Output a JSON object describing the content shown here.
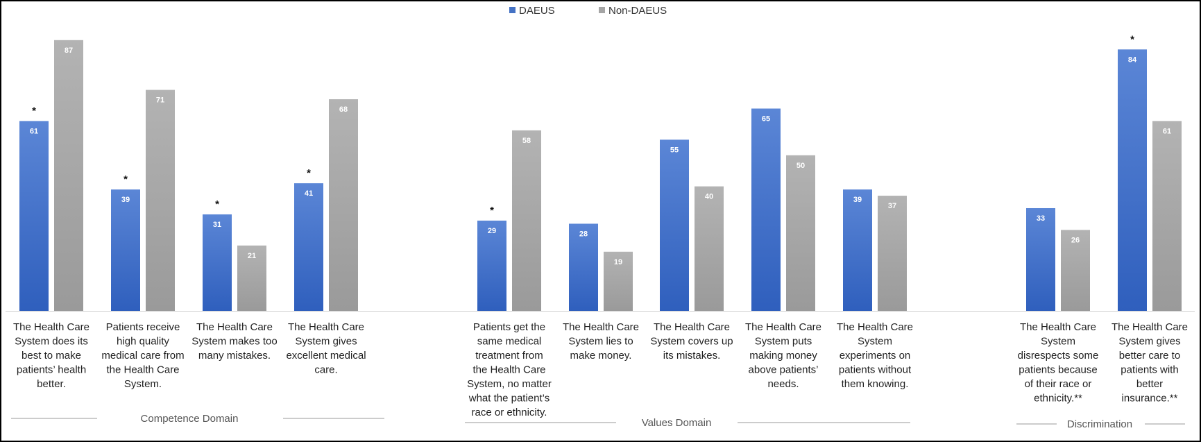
{
  "chart_data": {
    "type": "bar",
    "legend_position": "top-center",
    "grid": false,
    "ylim": [
      0,
      100
    ],
    "colors": {
      "DAEUS": "#4472c4",
      "Non-DAEUS": "#a5a5a5"
    },
    "series": [
      {
        "name": "DAEUS",
        "values": [
          61,
          39,
          31,
          41,
          29,
          28,
          55,
          65,
          39,
          33,
          84
        ]
      },
      {
        "name": "Non-DAEUS",
        "values": [
          87,
          71,
          21,
          68,
          58,
          19,
          40,
          50,
          37,
          26,
          61
        ]
      }
    ],
    "categories": [
      {
        "lines": [
          "The Health Care",
          "System does its",
          "best to make",
          "patients’ health",
          "better."
        ],
        "star": "*"
      },
      {
        "lines": [
          "Patients receive",
          "high quality",
          "medical care from",
          "the Health Care",
          "System."
        ],
        "star": "*"
      },
      {
        "lines": [
          "The Health Care",
          "System makes too",
          "many mistakes."
        ],
        "star": "*"
      },
      {
        "lines": [
          "The Health Care",
          "System gives",
          "excellent medical",
          "care."
        ],
        "star": "*"
      },
      {
        "lines": [
          "Patients get the",
          "same medical",
          "treatment from",
          "the Health Care",
          "System, no matter",
          "what the patient’s",
          "race or ethnicity."
        ],
        "star": "*"
      },
      {
        "lines": [
          "The Health Care",
          "System lies to",
          "make money."
        ],
        "star": ""
      },
      {
        "lines": [
          "The Health Care",
          "System covers up",
          "its mistakes."
        ],
        "star": ""
      },
      {
        "lines": [
          "The Health Care",
          "System puts",
          "making money",
          "above patients’",
          "needs."
        ],
        "star": ""
      },
      {
        "lines": [
          "The Health Care",
          "System",
          "experiments on",
          "patients without",
          "them knowing."
        ],
        "star": ""
      },
      {
        "lines": [
          "The Health Care",
          "System",
          "disrespects some",
          "patients because",
          "of their race or",
          "ethnicity.**"
        ],
        "star": ""
      },
      {
        "lines": [
          "The Health Care",
          "System gives",
          "better care to",
          "patients with",
          "better",
          "insurance.**"
        ],
        "star": "*"
      }
    ],
    "domains": [
      {
        "label": "Competence Domain",
        "categories": [
          0,
          1,
          2,
          3
        ]
      },
      {
        "label": "Values Domain",
        "categories": [
          4,
          5,
          6,
          7,
          8
        ]
      },
      {
        "label": "Discrimination",
        "categories": [
          9,
          10
        ]
      }
    ]
  }
}
